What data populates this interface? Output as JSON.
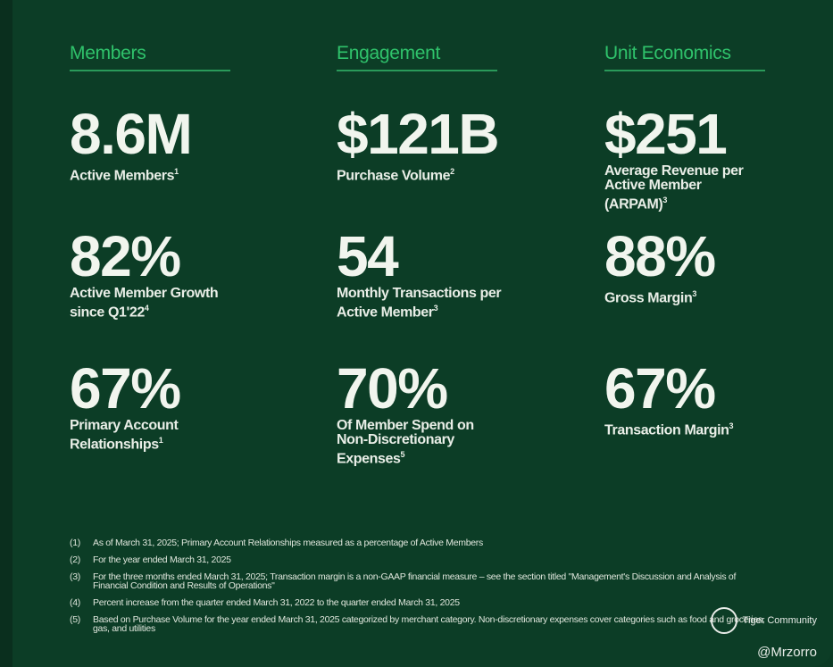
{
  "columns": [
    {
      "heading": "Members",
      "stats": [
        {
          "value": "8.6M",
          "label": "Active Members",
          "sup": "1"
        },
        {
          "value": "82%",
          "label": "Active Member Growth since Q1'22",
          "sup": "4"
        },
        {
          "value": "67%",
          "label": "Primary Account Relationships",
          "sup": "1"
        }
      ]
    },
    {
      "heading": "Engagement",
      "stats": [
        {
          "value": "$121B",
          "label": "Purchase Volume",
          "sup": "2"
        },
        {
          "value": "54",
          "label": "Monthly Transactions per Active Member",
          "sup": "3"
        },
        {
          "value": "70%",
          "label": "Of Member Spend on Non-Discretionary Expenses",
          "sup": "5"
        }
      ]
    },
    {
      "heading": "Unit Economics",
      "stats": [
        {
          "value": "$251",
          "label": "Average Revenue per Active Member (ARPAM)",
          "sup": "3"
        },
        {
          "value": "88%",
          "label": "Gross Margin",
          "sup": "3"
        },
        {
          "value": "67%",
          "label": "Transaction Margin",
          "sup": "3"
        }
      ]
    }
  ],
  "footnotes": [
    {
      "n": "(1)",
      "text": "As of March 31, 2025; Primary Account Relationships measured as a percentage of Active Members"
    },
    {
      "n": "(2)",
      "text": "For the year ended March 31, 2025"
    },
    {
      "n": "(3)",
      "text": "For the three months ended March 31, 2025; Transaction margin is a non-GAAP financial measure – see the section titled \"Management's Discussion and Analysis of Financial Condition and Results of Operations\""
    },
    {
      "n": "(4)",
      "text": "Percent increase from the quarter ended March 31, 2022 to the quarter ended March 31, 2025"
    },
    {
      "n": "(5)",
      "text": "Based on Purchase Volume for the year ended March 31, 2025 categorized by merchant category. Non-discretionary expenses cover categories such as food and groceries, gas, and utilities"
    }
  ],
  "watermark": {
    "brand": "Tiger Community",
    "user": "@Mrzorro"
  }
}
